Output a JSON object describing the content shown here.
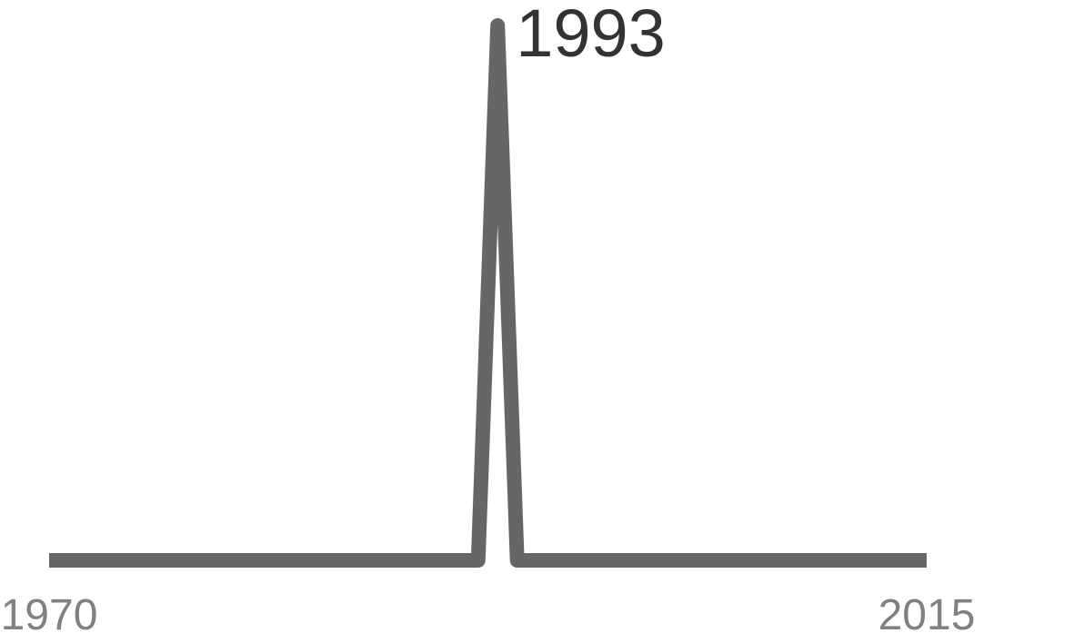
{
  "chart_data": {
    "type": "line",
    "title": "",
    "xlabel": "",
    "ylabel": "",
    "x": [
      1970,
      1991,
      1992,
      1993,
      1994,
      1995,
      2015
    ],
    "series": [
      {
        "values": [
          0,
          0,
          0,
          1,
          0,
          0,
          0
        ]
      }
    ],
    "xlim": [
      1970,
      2015
    ],
    "ylim": [
      0,
      1
    ],
    "x_tick_labels": [
      "1970",
      "2015"
    ],
    "annotations": [
      {
        "text": "1993",
        "x": 1993
      }
    ],
    "grid": false,
    "legend": "none",
    "colors": {
      "line": "#666666",
      "tick_text": "#808080",
      "annotation_text": "#333333"
    }
  }
}
